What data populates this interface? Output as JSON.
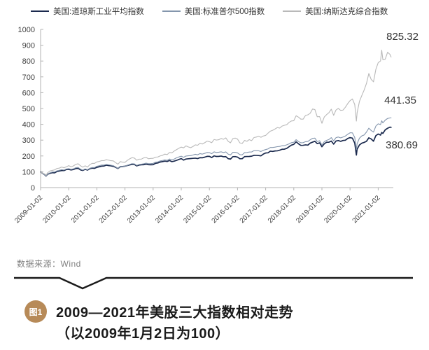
{
  "legend": {
    "items": [
      {
        "label": "美国:道琼斯工业平均指数",
        "color": "#1b2a4e",
        "thickness": 2.5
      },
      {
        "label": "美国:标准普尔500指数",
        "color": "#8496ad",
        "thickness": 1.5
      },
      {
        "label": "美国:纳斯达克综合指数",
        "color": "#b9b9b9",
        "thickness": 1.5
      }
    ]
  },
  "chart_data": {
    "type": "line",
    "title": "2009—2021年美股三大指数相对走势（以2009年1月2日为100）",
    "xlabel": "",
    "ylabel": "",
    "ylim": [
      0,
      1000
    ],
    "grid": false,
    "legend_position": "top",
    "y_ticks": [
      0,
      100,
      200,
      300,
      400,
      500,
      600,
      700,
      800,
      900,
      1000
    ],
    "x_tick_labels": [
      "2009-01-02",
      "2010-01-02",
      "2011-01-02",
      "2012-01-02",
      "2013-01-02",
      "2014-01-02",
      "2015-01-02",
      "2016-01-02",
      "2017-01-02",
      "2018-01-02",
      "2019-01-02",
      "2020-01-02",
      "2021-01-02"
    ],
    "x_unit": "months since 2009-01-02",
    "t": [
      0,
      1,
      2,
      2.3,
      3,
      4,
      5,
      6,
      7,
      8,
      9,
      10,
      11,
      12,
      13,
      14,
      15,
      16,
      17,
      18,
      19,
      20,
      21,
      22,
      23,
      24,
      25,
      26,
      27,
      28,
      29,
      30,
      31,
      32,
      33,
      34,
      35,
      36,
      37,
      38,
      39,
      40,
      41,
      42,
      43,
      44,
      45,
      46,
      47,
      48,
      49,
      50,
      51,
      52,
      53,
      54,
      55,
      56,
      57,
      58,
      59,
      60,
      61,
      62,
      63,
      64,
      65,
      66,
      67,
      68,
      69,
      70,
      71,
      72,
      73,
      74,
      75,
      76,
      77,
      78,
      79,
      80,
      81,
      82,
      83,
      84,
      85,
      86,
      87,
      88,
      89,
      90,
      91,
      92,
      93,
      94,
      95,
      96,
      97,
      98,
      99,
      100,
      101,
      102,
      103,
      104,
      105,
      106,
      107,
      108,
      109,
      110,
      111,
      112,
      113,
      114,
      115,
      116,
      117,
      118,
      119,
      120,
      121,
      122,
      123,
      124,
      125,
      126,
      127,
      128,
      129,
      130,
      131,
      132,
      133,
      134,
      134.7,
      135,
      136,
      137,
      138,
      139,
      140,
      141,
      142,
      143,
      144,
      145,
      145.5,
      146,
      147,
      148,
      149,
      149.5
    ],
    "series": [
      {
        "name": "美国:道琼斯工业平均指数",
        "color": "#1b2a4e",
        "stroke_width": 1.7,
        "end_label": "380.69",
        "values": [
          100,
          88.6,
          78.2,
          72.5,
          84.2,
          90.4,
          94.1,
          93.5,
          101.5,
          105.1,
          107.5,
          107.5,
          114.5,
          115.4,
          111.4,
          114.3,
          120.2,
          121.8,
          112.2,
          108.2,
          115.8,
          110.8,
          119.4,
          123.1,
          121.8,
          128.1,
          131.6,
          135.3,
          136.4,
          141.8,
          139.1,
          137.4,
          134.4,
          128.5,
          120.8,
          132.3,
          133.3,
          135.2,
          139.8,
          143.4,
          146.2,
          146.3,
          137.2,
          142.6,
          144.0,
          144.9,
          148.7,
          145.0,
          144.2,
          145.0,
          153.4,
          155.6,
          161.4,
          164.3,
          167.3,
          165.0,
          171.6,
          163.9,
          167.5,
          172.1,
          178.1,
          183.5,
          173.8,
          180.7,
          182.2,
          183.5,
          185.0,
          186.2,
          183.3,
          189.3,
          188.6,
          192.5,
          197.3,
          197.3,
          190.0,
          200.7,
          196.8,
          197.5,
          199.4,
          195.0,
          195.8,
          182.9,
          180.2,
          195.5,
          196.1,
          192.9,
          182.3,
          182.8,
          195.7,
          196.7,
          196.9,
          198.5,
          204.0,
          203.7,
          202.6,
          200.8,
          211.7,
          218.7,
          219.9,
          230.4,
          228.7,
          231.8,
          232.5,
          236.3,
          242.3,
          242.9,
          248.0,
          258.8,
          268.7,
          273.6,
          289.4,
          277.0,
          266.8,
          267.4,
          270.2,
          268.6,
          281.3,
          287.4,
          292.8,
          278.0,
          282.7,
          258.2,
          276.7,
          286.8,
          287.0,
          294.3,
          274.7,
          294.4,
          297.3,
          292.2,
          297.9,
          299.4,
          310.5,
          315.9,
          312.7,
          281.2,
          205.8,
          242.6,
          269.5,
          280.9,
          285.7,
          292.5,
          314.7,
          307.5,
          293.3,
          328.1,
          338.8,
          331.9,
          348.2,
          342.4,
          365.1,
          375.0,
          382.2,
          380.69
        ]
      },
      {
        "name": "美国:标准普尔500指数",
        "color": "#8496ad",
        "stroke_width": 1.1,
        "end_label": "441.35",
        "values": [
          100,
          88.6,
          78.9,
          72.6,
          85.6,
          93.7,
          98.6,
          98.7,
          106.0,
          109.5,
          113.4,
          111.2,
          117.6,
          119.7,
          115.2,
          118.5,
          125.5,
          127.4,
          116.9,
          110.6,
          118.2,
          112.6,
          122.5,
          127.0,
          126.7,
          135.0,
          138.0,
          142.4,
          142.3,
          146.3,
          144.4,
          141.7,
          138.7,
          130.8,
          121.4,
          134.5,
          133.8,
          135.0,
          140.8,
          146.6,
          151.2,
          150.0,
          140.6,
          146.2,
          148.0,
          151.0,
          154.6,
          151.6,
          152.0,
          153.1,
          160.8,
          162.6,
          168.4,
          171.4,
          175.0,
          172.4,
          180.9,
          175.2,
          180.5,
          188.5,
          193.8,
          198.4,
          191.3,
          199.6,
          200.9,
          202.2,
          206.4,
          210.4,
          207.2,
          215.0,
          211.7,
          216.6,
          221.9,
          221.0,
          214.1,
          225.9,
          221.9,
          223.8,
          226.2,
          221.4,
          225.8,
          211.7,
          206.1,
          223.2,
          223.3,
          219.4,
          208.2,
          207.4,
          221.0,
          221.6,
          225.0,
          225.2,
          233.3,
          233.0,
          232.7,
          228.2,
          236.0,
          240.3,
          244.6,
          253.7,
          253.6,
          255.9,
          258.8,
          260.1,
          265.1,
          265.3,
          270.4,
          276.4,
          284.1,
          286.9,
          303.0,
          291.2,
          283.4,
          284.2,
          290.3,
          291.7,
          302.2,
          311.4,
          312.7,
          291.0,
          296.2,
          269.0,
          290.2,
          298.8,
          304.2,
          316.1,
          295.3,
          315.7,
          319.9,
          314.1,
          319.5,
          326.0,
          337.1,
          346.7,
          346.2,
          317.0,
          240.1,
          277.4,
          312.6,
          326.7,
          332.7,
          351.1,
          375.6,
          360.9,
          350.9,
          388.7,
          403.1,
          398.6,
          422.2,
          409.0,
          426.4,
          437.0,
          440.2,
          441.35
        ]
      },
      {
        "name": "美国:纳斯达克综合指数",
        "color": "#b9b9b9",
        "stroke_width": 1.1,
        "end_label": "825.32",
        "values": [
          100,
          90.5,
          84.4,
          77.7,
          93.7,
          105.2,
          108.7,
          112.4,
          121.2,
          123.1,
          130.0,
          125.3,
          131.4,
          139.0,
          131.6,
          137.1,
          146.9,
          150.8,
          138.3,
          129.2,
          138.1,
          129.5,
          145.1,
          153.6,
          153.1,
          162.5,
          165.4,
          170.5,
          170.4,
          176.1,
          173.7,
          169.9,
          168.9,
          158.0,
          148.0,
          164.5,
          160.5,
          159.6,
          172.4,
          181.8,
          189.4,
          186.6,
          173.2,
          179.8,
          180.1,
          187.9,
          190.9,
          182.4,
          184.4,
          185.0,
          192.5,
          193.6,
          200.2,
          203.9,
          211.7,
          208.5,
          222.2,
          219.9,
          231.1,
          240.1,
          248.7,
          255.9,
          251.4,
          263.9,
          257.3,
          252.1,
          259.9,
          270.1,
          267.7,
          280.6,
          275.3,
          283.7,
          293.6,
          290.2,
          284.0,
          304.1,
          300.3,
          302.7,
          310.6,
          305.5,
          314.2,
          292.6,
          283.1,
          309.6,
          313.0,
          306.8,
          282.7,
          279.3,
          298.4,
          292.6,
          303.2,
          296.7,
          316.3,
          319.4,
          325.4,
          317.9,
          326.2,
          329.8,
          344.0,
          356.9,
          362.2,
          370.5,
          379.8,
          376.2,
          388.9,
          393.9,
          398.0,
          412.2,
          421.1,
          422.9,
          454.1,
          445.6,
          432.8,
          432.9,
          455.9,
          460.1,
          470.0,
          496.8,
          493.0,
          447.6,
          449.1,
          406.5,
          446.1,
          461.5,
          473.5,
          495.9,
          456.6,
          490.5,
          500.9,
          487.9,
          490.1,
          508.0,
          530.9,
          549.7,
          560.6,
          524.9,
          420.3,
          471.8,
          544.6,
          581.4,
          616.3,
          658.3,
          721.4,
          684.2,
          668.5,
          747.4,
          789.6,
          800.8,
          868.5,
          808.3,
          811.6,
          855.4,
          842.3,
          825.32
        ]
      }
    ]
  },
  "source": {
    "text": "数据来源：Wind"
  },
  "caption": {
    "badge": "图1",
    "line1": "2009—2021年美股三大指数相对走势",
    "line2": "（以2009年1月2日为100）"
  },
  "colors": {
    "badge": "#b78a58",
    "axis": "#b3b3b3",
    "tick_text": "#404040",
    "value_label": "#333333",
    "separator": "#1a1a1a",
    "source_text": "#808080"
  }
}
